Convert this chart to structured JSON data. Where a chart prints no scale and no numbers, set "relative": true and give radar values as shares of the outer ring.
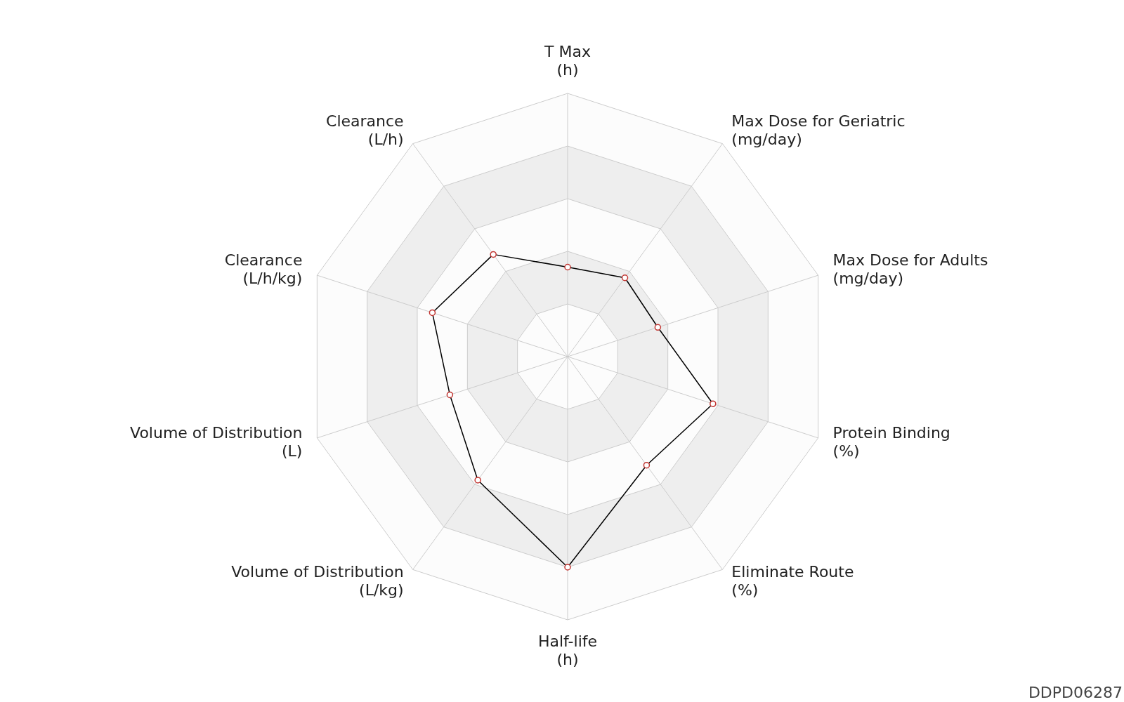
{
  "chart_data": {
    "type": "radar",
    "relative": true,
    "grid": true,
    "marker": "circle",
    "line_style": "solid",
    "categories": [
      "T Max\n(h)",
      "Max Dose for Geriatric\n(mg/day)",
      "Max Dose for Adults\n(mg/day)",
      "Protein Binding\n(%)",
      "Eliminate Route\n(%)",
      "Half-life\n(h)",
      "Volume of Distribution\n(L/kg)",
      "Volume of Distribution\n(L)",
      "Clearance\n(L/h/kg)",
      "Clearance\n(L/h)"
    ],
    "series": [
      {
        "color": "#000000",
        "values": [
          0.34,
          0.37,
          0.36,
          0.58,
          0.51,
          0.8,
          0.58,
          0.47,
          0.54,
          0.48
        ]
      }
    ],
    "annotations": [
      "DDPD06287"
    ]
  }
}
